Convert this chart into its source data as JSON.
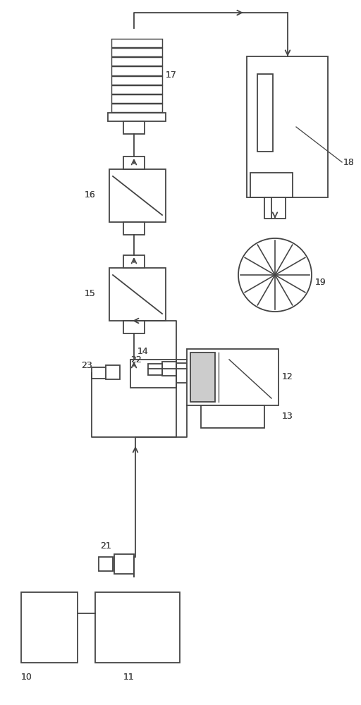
{
  "bg": "#ffffff",
  "lc": "#444444",
  "lw": 1.3,
  "fig_w": 5.12,
  "fig_h": 10.0,
  "dpi": 100
}
